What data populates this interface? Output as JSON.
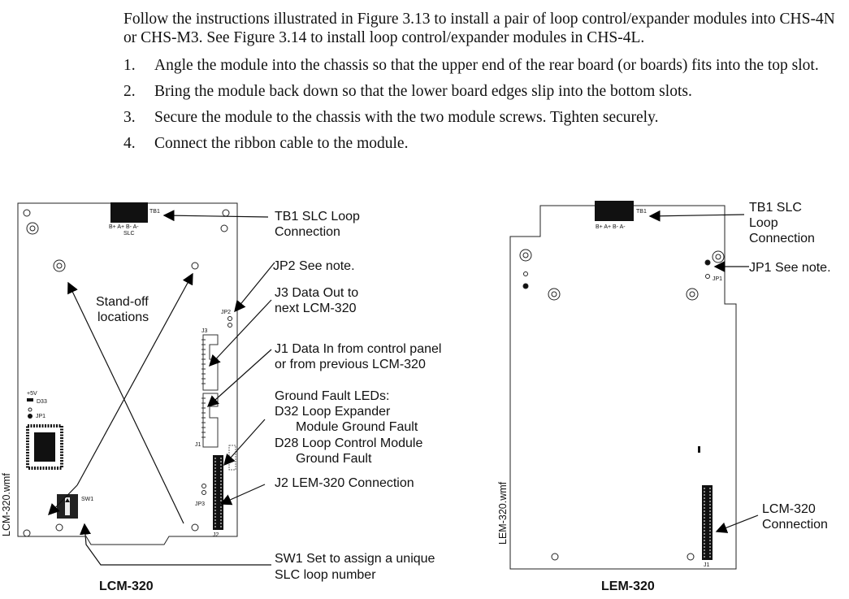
{
  "intro": "Follow the instructions illustrated in Figure 3.13 to install a pair of loop control/expander modules into CHS-4N or CHS-M3. See Figure 3.14 to install loop control/expander modules in CHS-4L.",
  "steps": [
    {
      "num": "1.",
      "text": "Angle the module into the chassis so that the upper end of the rear board (or boards) fits into the top slot."
    },
    {
      "num": "2.",
      "text": "Bring the module back down so that the lower board edges slip into the bottom slots."
    },
    {
      "num": "3.",
      "text": "Secure the module to the chassis with the two module screws. Tighten securely."
    },
    {
      "num": "4.",
      "text": "Connect the ribbon cable to the module."
    }
  ],
  "lcm": {
    "file_label": "LCM-320.wmf",
    "caption": "LCM-320",
    "board": {
      "tb1": "TB1",
      "tb1_pins": "B+ A+  B-  A-",
      "slc": "SLC",
      "jp2": "JP2",
      "j3": "J3",
      "j1": "J1",
      "j2": "J2",
      "jp3": "JP3",
      "sw1": "SW1",
      "plus5v": "+5V",
      "d33": "D33",
      "jp1": "JP1"
    },
    "callouts": {
      "tb1_line1": "TB1 SLC Loop",
      "tb1_line2": "Connection",
      "jp2": "JP2 See note.",
      "j3_line1": "J3 Data Out to",
      "j3_line2": "next LCM-320",
      "j1_line1": "J1 Data In from control panel",
      "j1_line2": "or from previous LCM-320",
      "gf_line1": "Ground Fault LEDs:",
      "gf_line2": "D32 Loop Expander",
      "gf_line3": "Module Ground Fault",
      "gf_line4": "D28 Loop Control Module",
      "gf_line5": "Ground Fault",
      "j2": "J2 LEM-320 Connection",
      "sw1_line1": "SW1 Set to assign a unique",
      "sw1_line2": "SLC loop number",
      "standoff_line1": "Stand-off",
      "standoff_line2": "locations"
    }
  },
  "lem": {
    "file_label": "LEM-320.wmf",
    "caption": "LEM-320",
    "board": {
      "tb1": "TB1",
      "tb1_pins": "B+ A+  B-  A-",
      "jp1": "JP1",
      "j1": "J1"
    },
    "callouts": {
      "tb1_line1": "TB1 SLC",
      "tb1_line2": "Loop",
      "tb1_line3": "Connection",
      "jp1": "JP1 See note.",
      "lcm_line1": "LCM-320",
      "lcm_line2": "Connection"
    }
  }
}
